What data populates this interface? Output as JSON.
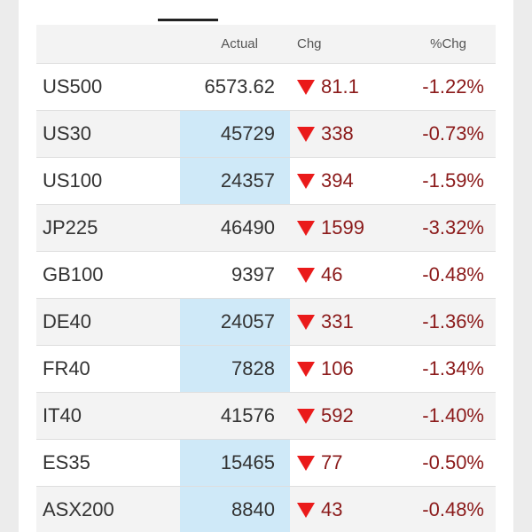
{
  "tabs": [],
  "table": {
    "headers": {
      "symbol": "",
      "actual": "Actual",
      "chg": "Chg",
      "pct": "%Chg"
    },
    "rows": [
      {
        "symbol": "US500",
        "actual": "6573.62",
        "chg": "81.1",
        "pct": "-1.22%",
        "direction": "down",
        "highlight": false
      },
      {
        "symbol": "US30",
        "actual": "45729",
        "chg": "338",
        "pct": "-0.73%",
        "direction": "down",
        "highlight": true
      },
      {
        "symbol": "US100",
        "actual": "24357",
        "chg": "394",
        "pct": "-1.59%",
        "direction": "down",
        "highlight": true
      },
      {
        "symbol": "JP225",
        "actual": "46490",
        "chg": "1599",
        "pct": "-3.32%",
        "direction": "down",
        "highlight": false
      },
      {
        "symbol": "GB100",
        "actual": "9397",
        "chg": "46",
        "pct": "-0.48%",
        "direction": "down",
        "highlight": false
      },
      {
        "symbol": "DE40",
        "actual": "24057",
        "chg": "331",
        "pct": "-1.36%",
        "direction": "down",
        "highlight": true
      },
      {
        "symbol": "FR40",
        "actual": "7828",
        "chg": "106",
        "pct": "-1.34%",
        "direction": "down",
        "highlight": true
      },
      {
        "symbol": "IT40",
        "actual": "41576",
        "chg": "592",
        "pct": "-1.40%",
        "direction": "down",
        "highlight": false
      },
      {
        "symbol": "ES35",
        "actual": "15465",
        "chg": "77",
        "pct": "-0.50%",
        "direction": "down",
        "highlight": true
      },
      {
        "symbol": "ASX200",
        "actual": "8840",
        "chg": "43",
        "pct": "-0.48%",
        "direction": "down",
        "highlight": true
      }
    ]
  },
  "colors": {
    "down_arrow": "#ea1a1a",
    "negative_text": "#8b1a1a",
    "highlight_cell": "#cfe9f8",
    "alt_row": "#f3f3f3"
  },
  "icons": {
    "down": "down-triangle-icon"
  }
}
